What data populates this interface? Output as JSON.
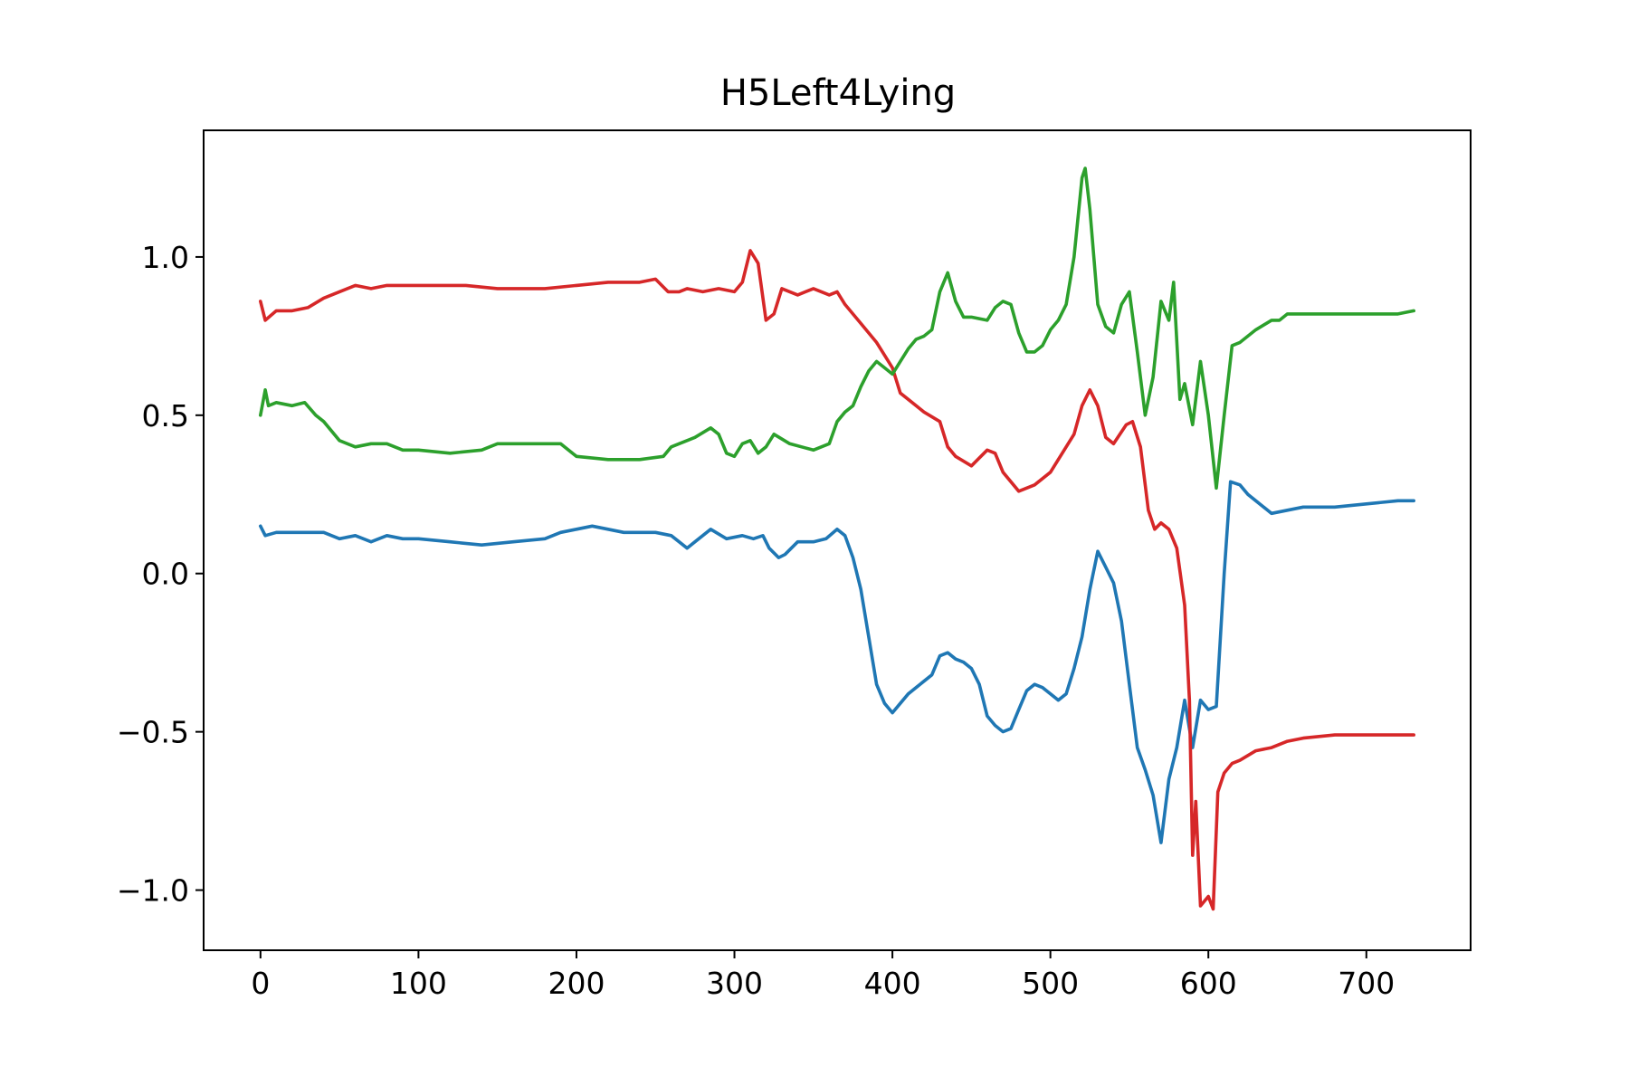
{
  "chart_data": {
    "type": "line",
    "title": "H5Left4Lying",
    "xlabel": "",
    "ylabel": "",
    "xlim": [
      -36,
      766
    ],
    "ylim": [
      -1.19,
      1.4
    ],
    "x_ticks": [
      0,
      100,
      200,
      300,
      400,
      500,
      600,
      700
    ],
    "y_ticks": [
      {
        "value": 1.0,
        "label": "1.0"
      },
      {
        "value": 0.5,
        "label": "0.5"
      },
      {
        "value": 0.0,
        "label": "0.0"
      },
      {
        "value": -0.5,
        "label": "−0.5"
      },
      {
        "value": -1.0,
        "label": "−1.0"
      }
    ],
    "grid": false,
    "legend": "none",
    "series": [
      {
        "color": "#1f77b4",
        "points": [
          [
            0,
            0.15
          ],
          [
            3,
            0.12
          ],
          [
            10,
            0.13
          ],
          [
            20,
            0.13
          ],
          [
            30,
            0.13
          ],
          [
            40,
            0.13
          ],
          [
            50,
            0.11
          ],
          [
            60,
            0.12
          ],
          [
            70,
            0.1
          ],
          [
            80,
            0.12
          ],
          [
            90,
            0.11
          ],
          [
            100,
            0.11
          ],
          [
            120,
            0.1
          ],
          [
            140,
            0.09
          ],
          [
            160,
            0.1
          ],
          [
            180,
            0.11
          ],
          [
            190,
            0.13
          ],
          [
            200,
            0.14
          ],
          [
            210,
            0.15
          ],
          [
            220,
            0.14
          ],
          [
            230,
            0.13
          ],
          [
            240,
            0.13
          ],
          [
            250,
            0.13
          ],
          [
            260,
            0.12
          ],
          [
            265,
            0.1
          ],
          [
            270,
            0.08
          ],
          [
            275,
            0.1
          ],
          [
            285,
            0.14
          ],
          [
            295,
            0.11
          ],
          [
            305,
            0.12
          ],
          [
            312,
            0.11
          ],
          [
            318,
            0.12
          ],
          [
            322,
            0.08
          ],
          [
            328,
            0.05
          ],
          [
            332,
            0.06
          ],
          [
            340,
            0.1
          ],
          [
            350,
            0.1
          ],
          [
            358,
            0.11
          ],
          [
            365,
            0.14
          ],
          [
            370,
            0.12
          ],
          [
            375,
            0.05
          ],
          [
            380,
            -0.05
          ],
          [
            385,
            -0.2
          ],
          [
            390,
            -0.35
          ],
          [
            395,
            -0.41
          ],
          [
            400,
            -0.44
          ],
          [
            405,
            -0.41
          ],
          [
            410,
            -0.38
          ],
          [
            415,
            -0.36
          ],
          [
            420,
            -0.34
          ],
          [
            425,
            -0.32
          ],
          [
            430,
            -0.26
          ],
          [
            435,
            -0.25
          ],
          [
            440,
            -0.27
          ],
          [
            445,
            -0.28
          ],
          [
            450,
            -0.3
          ],
          [
            455,
            -0.35
          ],
          [
            460,
            -0.45
          ],
          [
            465,
            -0.48
          ],
          [
            470,
            -0.5
          ],
          [
            475,
            -0.49
          ],
          [
            480,
            -0.43
          ],
          [
            485,
            -0.37
          ],
          [
            490,
            -0.35
          ],
          [
            495,
            -0.36
          ],
          [
            500,
            -0.38
          ],
          [
            505,
            -0.4
          ],
          [
            510,
            -0.38
          ],
          [
            515,
            -0.3
          ],
          [
            520,
            -0.2
          ],
          [
            525,
            -0.05
          ],
          [
            530,
            0.07
          ],
          [
            535,
            0.02
          ],
          [
            540,
            -0.03
          ],
          [
            545,
            -0.15
          ],
          [
            550,
            -0.35
          ],
          [
            555,
            -0.55
          ],
          [
            560,
            -0.62
          ],
          [
            565,
            -0.7
          ],
          [
            570,
            -0.85
          ],
          [
            575,
            -0.65
          ],
          [
            580,
            -0.55
          ],
          [
            585,
            -0.4
          ],
          [
            590,
            -0.55
          ],
          [
            595,
            -0.4
          ],
          [
            600,
            -0.43
          ],
          [
            605,
            -0.42
          ],
          [
            610,
            0.0
          ],
          [
            614,
            0.29
          ],
          [
            620,
            0.28
          ],
          [
            625,
            0.25
          ],
          [
            630,
            0.23
          ],
          [
            640,
            0.19
          ],
          [
            650,
            0.2
          ],
          [
            660,
            0.21
          ],
          [
            680,
            0.21
          ],
          [
            700,
            0.22
          ],
          [
            720,
            0.23
          ],
          [
            730,
            0.23
          ]
        ]
      },
      {
        "color": "#d62728",
        "points": [
          [
            0,
            0.86
          ],
          [
            3,
            0.8
          ],
          [
            10,
            0.83
          ],
          [
            20,
            0.83
          ],
          [
            30,
            0.84
          ],
          [
            40,
            0.87
          ],
          [
            50,
            0.89
          ],
          [
            60,
            0.91
          ],
          [
            70,
            0.9
          ],
          [
            80,
            0.91
          ],
          [
            100,
            0.91
          ],
          [
            130,
            0.91
          ],
          [
            150,
            0.9
          ],
          [
            180,
            0.9
          ],
          [
            200,
            0.91
          ],
          [
            220,
            0.92
          ],
          [
            240,
            0.92
          ],
          [
            250,
            0.93
          ],
          [
            258,
            0.89
          ],
          [
            265,
            0.89
          ],
          [
            270,
            0.9
          ],
          [
            280,
            0.89
          ],
          [
            290,
            0.9
          ],
          [
            300,
            0.89
          ],
          [
            305,
            0.92
          ],
          [
            310,
            1.02
          ],
          [
            315,
            0.98
          ],
          [
            320,
            0.8
          ],
          [
            325,
            0.82
          ],
          [
            330,
            0.9
          ],
          [
            340,
            0.88
          ],
          [
            350,
            0.9
          ],
          [
            360,
            0.88
          ],
          [
            365,
            0.89
          ],
          [
            370,
            0.85
          ],
          [
            380,
            0.79
          ],
          [
            390,
            0.73
          ],
          [
            400,
            0.65
          ],
          [
            405,
            0.57
          ],
          [
            410,
            0.55
          ],
          [
            420,
            0.51
          ],
          [
            430,
            0.48
          ],
          [
            435,
            0.4
          ],
          [
            440,
            0.37
          ],
          [
            450,
            0.34
          ],
          [
            460,
            0.39
          ],
          [
            465,
            0.38
          ],
          [
            470,
            0.32
          ],
          [
            480,
            0.26
          ],
          [
            490,
            0.28
          ],
          [
            500,
            0.32
          ],
          [
            510,
            0.4
          ],
          [
            515,
            0.44
          ],
          [
            520,
            0.53
          ],
          [
            525,
            0.58
          ],
          [
            530,
            0.53
          ],
          [
            535,
            0.43
          ],
          [
            540,
            0.41
          ],
          [
            548,
            0.47
          ],
          [
            552,
            0.48
          ],
          [
            557,
            0.4
          ],
          [
            562,
            0.2
          ],
          [
            566,
            0.14
          ],
          [
            570,
            0.16
          ],
          [
            575,
            0.14
          ],
          [
            580,
            0.08
          ],
          [
            585,
            -0.1
          ],
          [
            588,
            -0.4
          ],
          [
            590,
            -0.89
          ],
          [
            592,
            -0.72
          ],
          [
            595,
            -1.05
          ],
          [
            600,
            -1.02
          ],
          [
            603,
            -1.06
          ],
          [
            606,
            -0.69
          ],
          [
            610,
            -0.63
          ],
          [
            615,
            -0.6
          ],
          [
            620,
            -0.59
          ],
          [
            630,
            -0.56
          ],
          [
            640,
            -0.55
          ],
          [
            650,
            -0.53
          ],
          [
            660,
            -0.52
          ],
          [
            680,
            -0.51
          ],
          [
            700,
            -0.51
          ],
          [
            720,
            -0.51
          ],
          [
            730,
            -0.51
          ]
        ]
      },
      {
        "color": "#2ca02c",
        "points": [
          [
            0,
            0.5
          ],
          [
            3,
            0.58
          ],
          [
            5,
            0.53
          ],
          [
            10,
            0.54
          ],
          [
            20,
            0.53
          ],
          [
            28,
            0.54
          ],
          [
            35,
            0.5
          ],
          [
            40,
            0.48
          ],
          [
            50,
            0.42
          ],
          [
            60,
            0.4
          ],
          [
            70,
            0.41
          ],
          [
            80,
            0.41
          ],
          [
            90,
            0.39
          ],
          [
            100,
            0.39
          ],
          [
            120,
            0.38
          ],
          [
            140,
            0.39
          ],
          [
            150,
            0.41
          ],
          [
            170,
            0.41
          ],
          [
            190,
            0.41
          ],
          [
            200,
            0.37
          ],
          [
            220,
            0.36
          ],
          [
            240,
            0.36
          ],
          [
            255,
            0.37
          ],
          [
            260,
            0.4
          ],
          [
            265,
            0.41
          ],
          [
            275,
            0.43
          ],
          [
            285,
            0.46
          ],
          [
            290,
            0.44
          ],
          [
            295,
            0.38
          ],
          [
            300,
            0.37
          ],
          [
            305,
            0.41
          ],
          [
            310,
            0.42
          ],
          [
            315,
            0.38
          ],
          [
            320,
            0.4
          ],
          [
            325,
            0.44
          ],
          [
            335,
            0.41
          ],
          [
            350,
            0.39
          ],
          [
            360,
            0.41
          ],
          [
            365,
            0.48
          ],
          [
            370,
            0.51
          ],
          [
            375,
            0.53
          ],
          [
            380,
            0.59
          ],
          [
            385,
            0.64
          ],
          [
            390,
            0.67
          ],
          [
            395,
            0.65
          ],
          [
            400,
            0.63
          ],
          [
            405,
            0.67
          ],
          [
            410,
            0.71
          ],
          [
            415,
            0.74
          ],
          [
            420,
            0.75
          ],
          [
            425,
            0.77
          ],
          [
            430,
            0.89
          ],
          [
            435,
            0.95
          ],
          [
            440,
            0.86
          ],
          [
            445,
            0.81
          ],
          [
            450,
            0.81
          ],
          [
            460,
            0.8
          ],
          [
            465,
            0.84
          ],
          [
            470,
            0.86
          ],
          [
            475,
            0.85
          ],
          [
            480,
            0.76
          ],
          [
            485,
            0.7
          ],
          [
            490,
            0.7
          ],
          [
            495,
            0.72
          ],
          [
            500,
            0.77
          ],
          [
            505,
            0.8
          ],
          [
            510,
            0.85
          ],
          [
            515,
            1.0
          ],
          [
            520,
            1.25
          ],
          [
            522,
            1.28
          ],
          [
            525,
            1.15
          ],
          [
            530,
            0.85
          ],
          [
            535,
            0.78
          ],
          [
            540,
            0.76
          ],
          [
            545,
            0.85
          ],
          [
            550,
            0.89
          ],
          [
            555,
            0.7
          ],
          [
            560,
            0.5
          ],
          [
            565,
            0.62
          ],
          [
            570,
            0.86
          ],
          [
            575,
            0.8
          ],
          [
            578,
            0.92
          ],
          [
            582,
            0.55
          ],
          [
            585,
            0.6
          ],
          [
            590,
            0.47
          ],
          [
            595,
            0.67
          ],
          [
            600,
            0.5
          ],
          [
            605,
            0.27
          ],
          [
            610,
            0.5
          ],
          [
            615,
            0.72
          ],
          [
            620,
            0.73
          ],
          [
            630,
            0.77
          ],
          [
            640,
            0.8
          ],
          [
            645,
            0.8
          ],
          [
            650,
            0.82
          ],
          [
            660,
            0.82
          ],
          [
            680,
            0.82
          ],
          [
            700,
            0.82
          ],
          [
            720,
            0.82
          ],
          [
            730,
            0.83
          ]
        ]
      }
    ]
  }
}
